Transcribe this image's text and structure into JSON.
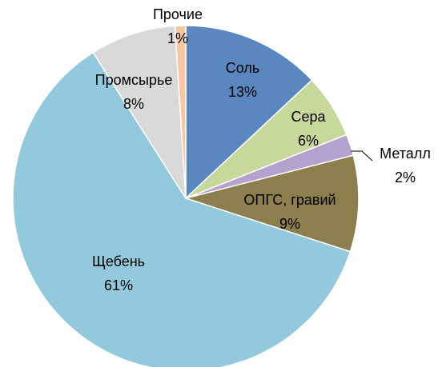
{
  "chart_data": {
    "type": "pie",
    "categories": [
      "Соль",
      "Сера",
      "Металл",
      "ОПГС, гравий",
      "Щебень",
      "Промсырье",
      "Прочие"
    ],
    "values": [
      13,
      6,
      2,
      9,
      61,
      8,
      1
    ],
    "value_labels": [
      "13%",
      "6%",
      "2%",
      "9%",
      "61%",
      "8%",
      "1%"
    ],
    "colors": [
      "#5b87c0",
      "#c6d89a",
      "#b3a2cb",
      "#8c7e4d",
      "#92c9dc",
      "#d9d9d9",
      "#f9c6a2"
    ]
  }
}
